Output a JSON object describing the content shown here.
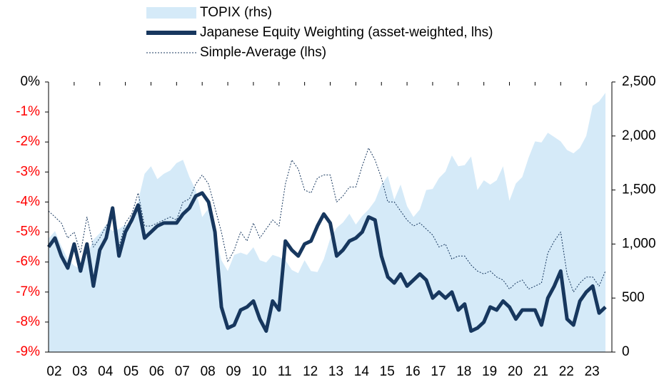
{
  "chart_data": {
    "type": "line",
    "x": [
      2002,
      2002.25,
      2002.5,
      2002.75,
      2003,
      2003.25,
      2003.5,
      2003.75,
      2004,
      2004.25,
      2004.5,
      2004.75,
      2005,
      2005.25,
      2005.5,
      2005.75,
      2006,
      2006.25,
      2006.5,
      2006.75,
      2007,
      2007.25,
      2007.5,
      2007.75,
      2008,
      2008.25,
      2008.5,
      2008.75,
      2009,
      2009.25,
      2009.5,
      2009.75,
      2010,
      2010.25,
      2010.5,
      2010.75,
      2011,
      2011.25,
      2011.5,
      2011.75,
      2012,
      2012.25,
      2012.5,
      2012.75,
      2013,
      2013.25,
      2013.5,
      2013.75,
      2014,
      2014.25,
      2014.5,
      2014.75,
      2015,
      2015.25,
      2015.5,
      2015.75,
      2016,
      2016.25,
      2016.5,
      2016.75,
      2017,
      2017.25,
      2017.5,
      2017.75,
      2018,
      2018.25,
      2018.5,
      2018.75,
      2019,
      2019.25,
      2019.5,
      2019.75,
      2020,
      2020.25,
      2020.5,
      2020.75,
      2021,
      2021.25,
      2021.5,
      2021.75,
      2022,
      2022.25,
      2022.5,
      2022.75,
      2023,
      2023.25,
      2023.5,
      2023.75
    ],
    "series": [
      {
        "name": "TOPIX (rhs)",
        "kind": "area",
        "axis": "y2",
        "color": "#d5eaf8",
        "values": [
          1050,
          1120,
          980,
          860,
          800,
          770,
          900,
          1040,
          1100,
          1180,
          1120,
          1140,
          1180,
          1170,
          1400,
          1650,
          1720,
          1600,
          1650,
          1680,
          1750,
          1780,
          1620,
          1500,
          1250,
          1330,
          1100,
          850,
          750,
          900,
          920,
          900,
          970,
          850,
          830,
          900,
          880,
          850,
          760,
          730,
          850,
          750,
          740,
          860,
          1050,
          1150,
          1200,
          1280,
          1180,
          1260,
          1320,
          1400,
          1550,
          1630,
          1410,
          1550,
          1350,
          1250,
          1320,
          1500,
          1510,
          1610,
          1670,
          1820,
          1720,
          1730,
          1810,
          1500,
          1590,
          1550,
          1590,
          1720,
          1400,
          1560,
          1620,
          1800,
          1950,
          1940,
          2030,
          1990,
          1950,
          1870,
          1840,
          1890,
          2000,
          2280,
          2320,
          2400
        ]
      },
      {
        "name": "Japanese Equity Weighting (asset-weighted, lhs)",
        "kind": "line",
        "color": "#17375e",
        "values": [
          -5.5,
          -5.2,
          -5.8,
          -6.2,
          -5.4,
          -6.3,
          -5.4,
          -6.8,
          -5.6,
          -5.2,
          -4.2,
          -5.8,
          -5.0,
          -4.6,
          -4.1,
          -5.2,
          -5.0,
          -4.8,
          -4.7,
          -4.7,
          -4.7,
          -4.4,
          -4.2,
          -3.8,
          -3.7,
          -4.0,
          -5.0,
          -7.5,
          -8.2,
          -8.1,
          -7.6,
          -7.5,
          -7.3,
          -7.9,
          -8.3,
          -7.3,
          -7.6,
          -5.3,
          -5.6,
          -5.8,
          -5.4,
          -5.3,
          -4.8,
          -4.4,
          -4.7,
          -5.8,
          -5.6,
          -5.3,
          -5.2,
          -5.0,
          -4.5,
          -4.6,
          -5.8,
          -6.5,
          -6.7,
          -6.4,
          -6.8,
          -6.6,
          -6.4,
          -6.6,
          -7.2,
          -7.0,
          -7.2,
          -7.0,
          -7.6,
          -7.4,
          -8.3,
          -8.2,
          -8.0,
          -7.5,
          -7.6,
          -7.3,
          -7.5,
          -7.9,
          -7.6,
          -7.6,
          -7.6,
          -8.1,
          -7.2,
          -6.8,
          -6.3,
          -7.9,
          -8.1,
          -7.3,
          -7.0,
          -6.8,
          -7.7,
          -7.5
        ]
      },
      {
        "name": "Simple-Average (lhs)",
        "kind": "dashed",
        "color": "#17375e",
        "values": [
          -4.3,
          -4.5,
          -4.7,
          -5.2,
          -5.0,
          -5.7,
          -4.5,
          -5.5,
          -5.2,
          -4.8,
          -4.5,
          -5.5,
          -4.7,
          -4.4,
          -3.7,
          -4.8,
          -4.8,
          -4.7,
          -4.6,
          -4.5,
          -4.6,
          -4.0,
          -3.9,
          -3.4,
          -3.1,
          -3.4,
          -4.2,
          -5.0,
          -6.0,
          -5.6,
          -5.0,
          -5.3,
          -4.7,
          -5.2,
          -4.9,
          -4.6,
          -4.8,
          -3.4,
          -2.6,
          -2.9,
          -3.6,
          -3.7,
          -3.2,
          -3.1,
          -3.1,
          -4.0,
          -3.8,
          -3.5,
          -3.5,
          -2.8,
          -2.2,
          -2.6,
          -3.2,
          -4.0,
          -4.0,
          -4.3,
          -4.6,
          -4.8,
          -4.7,
          -4.9,
          -5.1,
          -5.5,
          -5.4,
          -5.9,
          -5.8,
          -5.8,
          -6.1,
          -6.3,
          -6.4,
          -6.3,
          -6.5,
          -6.6,
          -6.9,
          -6.7,
          -6.6,
          -6.9,
          -6.8,
          -6.7,
          -5.7,
          -5.3,
          -5.0,
          -6.4,
          -7.0,
          -6.7,
          -6.5,
          -6.5,
          -6.8,
          -6.3
        ]
      }
    ],
    "xlim": [
      2002,
      2024
    ],
    "xticks": [
      {
        "value": 2002,
        "label": "02"
      },
      {
        "value": 2003,
        "label": "03"
      },
      {
        "value": 2004,
        "label": "04"
      },
      {
        "value": 2005,
        "label": "05"
      },
      {
        "value": 2006,
        "label": "06"
      },
      {
        "value": 2007,
        "label": "07"
      },
      {
        "value": 2008,
        "label": "08"
      },
      {
        "value": 2009,
        "label": "09"
      },
      {
        "value": 2010,
        "label": "10"
      },
      {
        "value": 2011,
        "label": "11"
      },
      {
        "value": 2012,
        "label": "12"
      },
      {
        "value": 2013,
        "label": "13"
      },
      {
        "value": 2014,
        "label": "14"
      },
      {
        "value": 2015,
        "label": "15"
      },
      {
        "value": 2016,
        "label": "16"
      },
      {
        "value": 2017,
        "label": "17"
      },
      {
        "value": 2018,
        "label": "18"
      },
      {
        "value": 2019,
        "label": "19"
      },
      {
        "value": 2020,
        "label": "20"
      },
      {
        "value": 2021,
        "label": "21"
      },
      {
        "value": 2022,
        "label": "22"
      },
      {
        "value": 2023,
        "label": "23"
      }
    ],
    "ylim": [
      -9,
      0
    ],
    "yticks": [
      {
        "value": 0,
        "label": "0%"
      },
      {
        "value": -1,
        "label": "-1%"
      },
      {
        "value": -2,
        "label": "-2%"
      },
      {
        "value": -3,
        "label": "-3%"
      },
      {
        "value": -4,
        "label": "-4%"
      },
      {
        "value": -5,
        "label": "-5%"
      },
      {
        "value": -6,
        "label": "-6%"
      },
      {
        "value": -7,
        "label": "-7%"
      },
      {
        "value": -8,
        "label": "-8%"
      },
      {
        "value": -9,
        "label": "-9%"
      }
    ],
    "negative_tick_color": "#ff0000",
    "y2lim": [
      0,
      2500
    ],
    "y2ticks": [
      0,
      500,
      {
        "value": 1000,
        "label": "1,000"
      },
      {
        "value": 1500,
        "label": "1,500"
      },
      {
        "value": 2000,
        "label": "2,000"
      },
      {
        "value": 2500,
        "label": "2,500"
      }
    ],
    "legend": "top"
  }
}
